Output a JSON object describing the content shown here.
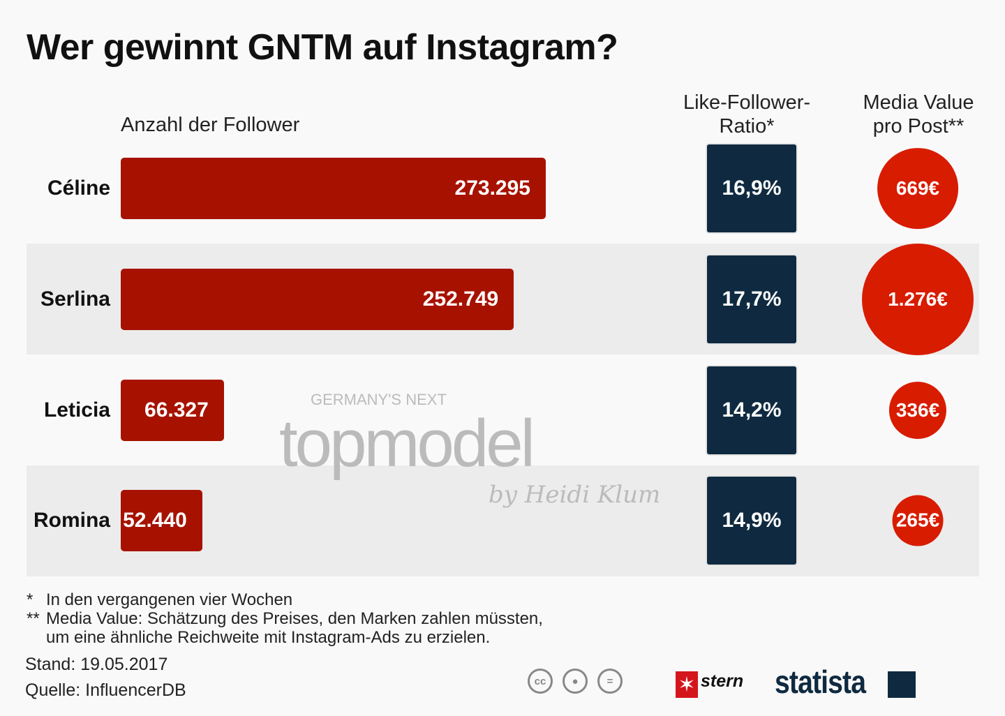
{
  "title": "Wer gewinnt GNTM auf Instagram?",
  "chart_data": {
    "type": "bar",
    "title": "Wer gewinnt GNTM auf Instagram?",
    "categories": [
      "Céline",
      "Serlina",
      "Leticia",
      "Romina"
    ],
    "series": [
      {
        "name": "Anzahl der Follower",
        "values": [
          273295,
          252749,
          66327,
          52440
        ],
        "labels": [
          "273.295",
          "252.749",
          "66.327",
          "52.440"
        ],
        "color": "#a71200"
      },
      {
        "name": "Like-Follower-Ratio*",
        "values": [
          16.9,
          17.7,
          14.2,
          14.9
        ],
        "labels": [
          "16,9%",
          "17,7%",
          "14,2%",
          "14,9%"
        ],
        "color": "#0f2a40"
      },
      {
        "name": "Media Value pro Post**",
        "values": [
          669,
          1276,
          336,
          265
        ],
        "labels": [
          "669€",
          "1.276€",
          "336€",
          "265€"
        ],
        "color": "#d81c00"
      }
    ],
    "headers": {
      "followers": "Anzahl der Follower",
      "ratio_line1": "Like-Follower-",
      "ratio_line2": "Ratio*",
      "media_line1": "Media Value",
      "media_line2": "pro Post**"
    }
  },
  "footnotes": [
    {
      "mark": "*",
      "text": "In den vergangenen vier Wochen"
    },
    {
      "mark": "**",
      "text": "Media Value: Schätzung des Preises, den Marken zahlen müssten,"
    },
    {
      "mark": "",
      "text": "um eine ähnliche Reichweite mit Instagram-Ads zu erzielen."
    }
  ],
  "stand": "Stand: 19.05.2017",
  "quelle": "Quelle: InfluencerDB",
  "watermark": {
    "line1": "GERMANY'S NEXT",
    "line2": "topmodel",
    "line3": "by Heidi Klum"
  },
  "logos": {
    "stern": "stern",
    "statista": "statista",
    "license_icons": [
      "cc-icon",
      "attribution-icon",
      "no-derivatives-icon"
    ]
  }
}
